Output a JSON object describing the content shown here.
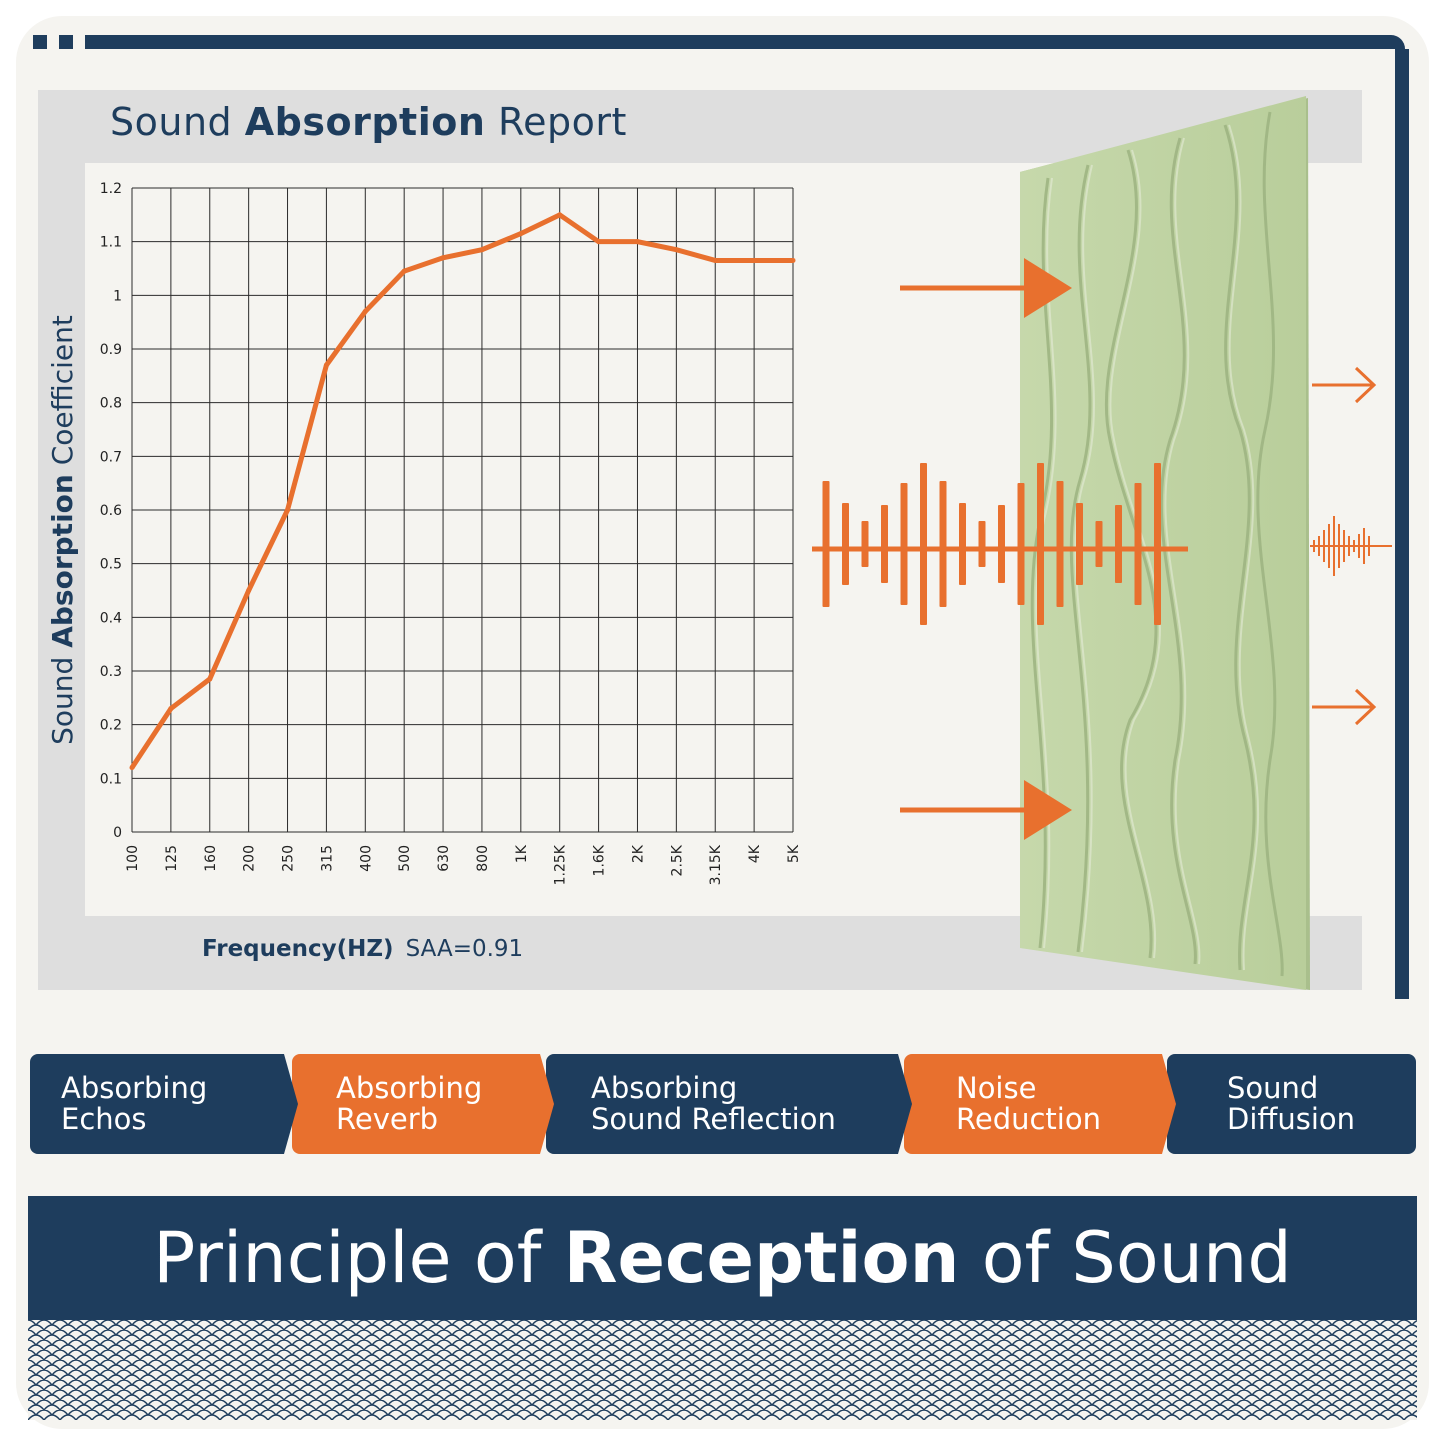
{
  "report": {
    "title_pre": "Sound ",
    "title_bold": "Absorption",
    "title_post": " Report",
    "footer_bold": "Frequency(HZ)",
    "footer_value": "SAA=0.91"
  },
  "chart_data": {
    "type": "line",
    "ylabel_pre": "Sound ",
    "ylabel_bold": "Absorption",
    "ylabel_post": " Coefficient",
    "xlabel": "Frequency(HZ)",
    "categories": [
      "100",
      "125",
      "160",
      "200",
      "250",
      "315",
      "400",
      "500",
      "630",
      "800",
      "1K",
      "1.25K",
      "1.6K",
      "2K",
      "2.5K",
      "3.15K",
      "4K",
      "5K"
    ],
    "series": [
      {
        "values": [
          0.12,
          0.23,
          0.285,
          0.45,
          0.6,
          0.87,
          0.97,
          1.045,
          1.07,
          1.085,
          1.115,
          1.15,
          1.1,
          1.1,
          1.085,
          1.065,
          1.065,
          1.065
        ]
      }
    ],
    "yticks": [
      "0",
      "0.1",
      "0.2",
      "0.3",
      "0.4",
      "0.5",
      "0.6",
      "0.7",
      "0.8",
      "0.9",
      "1",
      "1.1",
      "1.2"
    ],
    "ylim": [
      0,
      1.2
    ],
    "grid": true,
    "line_color": "#e8702e"
  },
  "colors": {
    "navy": "#1e3d5d",
    "orange": "#e8702e",
    "panel_green": "#c2d6a6"
  },
  "features": [
    {
      "line1": "Absorbing",
      "line2": "Echos",
      "color": "navy"
    },
    {
      "line1": "Absorbing",
      "line2": "Reverb",
      "color": "orange"
    },
    {
      "line1": "Absorbing",
      "line2": "Sound Reflection",
      "color": "navy"
    },
    {
      "line1": "Noise",
      "line2": "Reduction",
      "color": "orange"
    },
    {
      "line1": "Sound",
      "line2": "Diffusion",
      "color": "navy"
    }
  ],
  "banner": {
    "pre": "Principle of ",
    "bold": "Reception",
    "post": " of Sound"
  }
}
